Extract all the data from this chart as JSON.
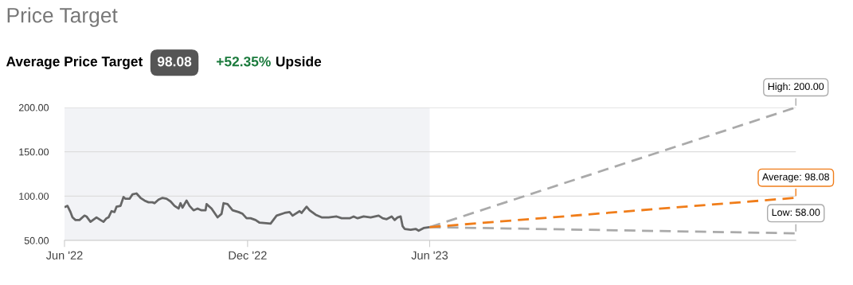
{
  "chart_data": {
    "type": "line",
    "title": "Price Target",
    "subtitle": "Average Price Target",
    "annotations": [
      "98.08",
      "+52.35%",
      "Upside"
    ],
    "ylim": [
      50,
      200
    ],
    "yticks": [
      {
        "value": 50,
        "label": "50.00"
      },
      {
        "value": 100,
        "label": "100.00"
      },
      {
        "value": 150,
        "label": "150.00"
      },
      {
        "value": 200,
        "label": "200.00"
      }
    ],
    "xlim": [
      "2022-06-01",
      "2024-06-01"
    ],
    "xticks": [
      {
        "value": "2022-06-01",
        "label": "Jun '22"
      },
      {
        "value": "2022-12-01",
        "label": "Dec '22"
      },
      {
        "value": "2023-06-01",
        "label": "Jun '23"
      }
    ],
    "grid": "y",
    "legend": false,
    "bands": [
      {
        "axis": "x",
        "from": "2022-06-01",
        "to": "2023-06-01",
        "label": null,
        "color": "#f2f3f6"
      }
    ],
    "series": [
      {
        "color": "#666666",
        "line_style": "solid",
        "x": [
          "2022-06-02",
          "2022-06-04",
          "2022-06-07",
          "2022-06-09",
          "2022-06-12",
          "2022-06-16",
          "2022-06-21",
          "2022-06-23",
          "2022-06-27",
          "2022-07-03",
          "2022-07-07",
          "2022-07-10",
          "2022-07-13",
          "2022-07-15",
          "2022-07-18",
          "2022-07-21",
          "2022-07-23",
          "2022-07-27",
          "2022-07-30",
          "2022-08-01",
          "2022-08-05",
          "2022-08-08",
          "2022-08-12",
          "2022-08-16",
          "2022-08-20",
          "2022-08-24",
          "2022-08-28",
          "2022-08-30",
          "2022-09-03",
          "2022-09-07",
          "2022-09-11",
          "2022-09-15",
          "2022-09-19",
          "2022-09-23",
          "2022-09-25",
          "2022-09-27",
          "2022-10-01",
          "2022-10-04",
          "2022-10-08",
          "2022-10-12",
          "2022-10-16",
          "2022-10-20",
          "2022-10-21",
          "2022-10-26",
          "2022-11-01",
          "2022-11-05",
          "2022-11-07",
          "2022-11-11",
          "2022-11-16",
          "2022-11-22",
          "2022-11-26",
          "2022-11-30",
          "2022-12-04",
          "2022-12-09",
          "2022-12-13",
          "2022-12-24",
          "2022-12-30",
          "2023-01-07",
          "2023-01-12",
          "2023-01-15",
          "2023-01-22",
          "2023-01-24",
          "2023-01-29",
          "2023-02-01",
          "2023-02-07",
          "2023-02-13",
          "2023-02-20",
          "2023-02-28",
          "2023-03-05",
          "2023-03-13",
          "2023-03-17",
          "2023-03-21",
          "2023-03-27",
          "2023-04-03",
          "2023-04-11",
          "2023-04-15",
          "2023-04-19",
          "2023-04-24",
          "2023-04-27",
          "2023-04-30",
          "2023-05-03",
          "2023-05-05",
          "2023-05-07",
          "2023-05-13",
          "2023-05-18",
          "2023-05-21",
          "2023-05-26",
          "2023-06-01"
        ],
        "values": [
          88,
          89,
          82,
          76,
          73,
          73,
          78,
          77,
          71,
          76,
          73,
          71,
          75,
          76,
          83,
          82,
          88,
          89,
          99,
          97,
          97,
          102,
          103,
          98,
          95,
          93,
          93,
          92,
          96,
          98,
          97,
          94,
          89,
          86,
          92,
          87,
          95,
          89,
          84,
          86,
          84,
          84,
          91,
          86,
          76,
          80,
          92,
          91,
          84,
          82,
          80,
          75,
          75,
          73,
          70,
          69,
          78,
          81,
          82,
          78,
          83,
          81,
          88,
          84,
          79,
          76,
          76,
          77,
          75,
          75,
          77,
          75,
          77,
          76,
          78,
          75,
          74,
          77,
          73,
          76,
          77,
          66,
          63,
          62,
          63,
          61,
          64,
          65
        ]
      },
      {
        "color": "#aaaaaa",
        "line_style": "dashed",
        "x": [
          "2023-06-01",
          "2024-06-01"
        ],
        "values": [
          65,
          200
        ],
        "value_labels": [
          null,
          "High: 200.00"
        ]
      },
      {
        "color": "#f07d1a",
        "line_style": "dashed",
        "x": [
          "2023-06-01",
          "2024-06-01"
        ],
        "values": [
          65,
          98.08
        ],
        "value_labels": [
          null,
          "Average: 98.08"
        ]
      },
      {
        "color": "#aaaaaa",
        "line_style": "dashed",
        "x": [
          "2023-06-01",
          "2024-06-01"
        ],
        "values": [
          65,
          58
        ],
        "value_labels": [
          null,
          "Low: 58.00"
        ]
      }
    ]
  }
}
